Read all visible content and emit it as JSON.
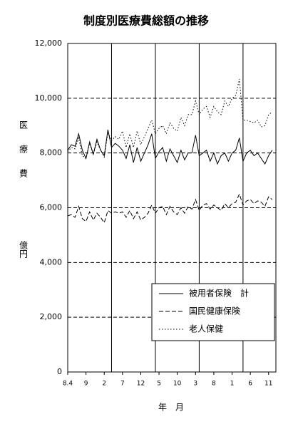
{
  "chart_data": {
    "type": "line",
    "title": "制度別医療費総額の推移",
    "y_label": "医療費",
    "y_unit": "億円",
    "x_label": "年　月",
    "categories": [
      "8.4",
      null,
      null,
      null,
      null,
      "9",
      null,
      null,
      null,
      null,
      "2",
      null,
      null,
      null,
      null,
      "7",
      null,
      null,
      null,
      null,
      "12",
      null,
      null,
      null,
      null,
      "5",
      null,
      null,
      null,
      null,
      "10",
      null,
      null,
      null,
      null,
      "3",
      null,
      null,
      null,
      null,
      "8",
      null,
      null,
      null,
      null,
      "1",
      null,
      null,
      null,
      null,
      "6",
      null,
      null,
      null,
      null,
      "11",
      null
    ],
    "ylim": [
      0,
      12000
    ],
    "yticks": [
      0,
      {
        "value": 2000,
        "label": "2,000"
      },
      {
        "value": 4000,
        "label": "4,000"
      },
      {
        "value": 6000,
        "label": "6,000"
      },
      {
        "value": 8000,
        "label": "8,000"
      },
      {
        "value": 10000,
        "label": "10,000"
      },
      {
        "value": 12000,
        "label": "12,000"
      }
    ],
    "grid": true,
    "legend": "lower right",
    "series": [
      {
        "name": "被用者保険　計",
        "color": "#000000",
        "style": "solid",
        "values": [
          8100,
          8300,
          8250,
          8700,
          8100,
          7800,
          8400,
          7950,
          8500,
          8100,
          7900,
          8850,
          8200,
          8350,
          8250,
          8100,
          7800,
          8300,
          7650,
          8200,
          7700,
          8000,
          8300,
          8700,
          7800,
          8050,
          8200,
          7700,
          8150,
          7900,
          7650,
          8100,
          7750,
          8000,
          8000,
          8650,
          7900,
          8000,
          8100,
          7700,
          8000,
          7600,
          7900,
          8000,
          7700,
          8000,
          8100,
          8550,
          7700,
          8000,
          8100,
          7900,
          8000,
          7800,
          7600,
          7900,
          8100
        ]
      },
      {
        "name": "国民健康保険",
        "color": "#000000",
        "style": "dashed",
        "values": [
          5700,
          5750,
          5650,
          6050,
          5600,
          5500,
          5850,
          5550,
          5800,
          5650,
          5450,
          5900,
          5800,
          5850,
          5800,
          5850,
          5650,
          5900,
          5600,
          5850,
          5550,
          5650,
          5800,
          6100,
          5800,
          6000,
          6050,
          5750,
          6050,
          5850,
          5750,
          6000,
          5800,
          6050,
          5950,
          6300,
          5900,
          6100,
          6150,
          5950,
          6100,
          6000,
          5900,
          6150,
          6000,
          6150,
          6200,
          6500,
          6100,
          6250,
          6300,
          6150,
          6250,
          6200,
          6050,
          6400,
          6300
        ]
      },
      {
        "name": "老人保健",
        "color": "#000000",
        "style": "dotted",
        "values": [
          8050,
          8200,
          8150,
          8550,
          7900,
          7800,
          8350,
          7950,
          8400,
          8100,
          7850,
          8750,
          8450,
          8600,
          8500,
          8800,
          8200,
          8700,
          8200,
          8800,
          8300,
          8600,
          8900,
          9200,
          8700,
          8900,
          9000,
          8700,
          9100,
          8900,
          8800,
          9300,
          9000,
          9400,
          9400,
          9900,
          9400,
          9600,
          9700,
          9300,
          9700,
          9500,
          9400,
          9900,
          9700,
          10000,
          10100,
          10700,
          9200,
          9200,
          9150,
          9100,
          9200,
          8950,
          9000,
          9400,
          9500
        ]
      }
    ]
  }
}
